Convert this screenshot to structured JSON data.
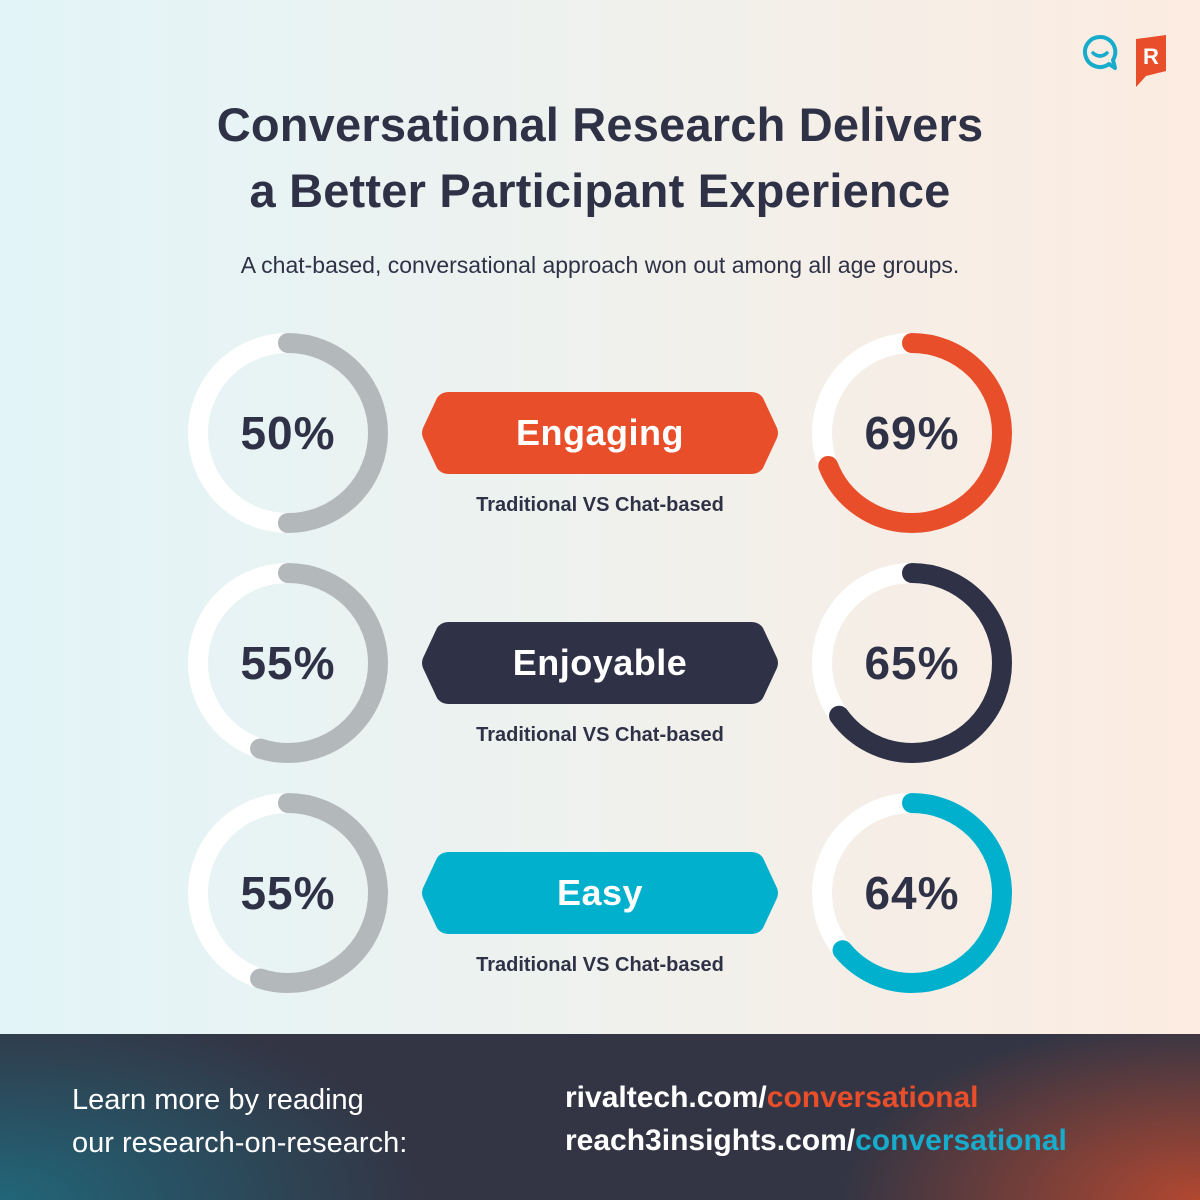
{
  "logos": {
    "reach3_icon": "chat-smile-icon",
    "rival_icon": "rival-r-flag-icon",
    "rival_letter": "R",
    "colors": {
      "reach3": "#17abcc",
      "rival": "#e94e2a"
    }
  },
  "header": {
    "title_line1": "Conversational Research Delivers",
    "title_line2": "a Better Participant Experience",
    "subtitle": "A chat-based, conversational approach won out among all age groups."
  },
  "metrics": [
    {
      "label": "Engaging",
      "traditional": "50%",
      "chat_based": "69%",
      "caption": "Traditional VS Chat-based",
      "color": "#e94e2a"
    },
    {
      "label": "Enjoyable",
      "traditional": "55%",
      "chat_based": "65%",
      "caption": "Traditional VS Chat-based",
      "color": "#2f3247"
    },
    {
      "label": "Easy",
      "traditional": "55%",
      "chat_based": "64%",
      "caption": "Traditional VS Chat-based",
      "color": "#00b0cc"
    }
  ],
  "colors": {
    "traditional_arc": "#b3b9ba",
    "track": "#ffffff",
    "text_dark": "#2f3247"
  },
  "footer": {
    "lead_line1": "Learn more by reading",
    "lead_line2": "our research-on-research:",
    "link1_base": "rivaltech.com/",
    "link1_path": "conversational",
    "link2_base": "reach3insights.com/",
    "link2_path": "conversational"
  },
  "chart_data": {
    "type": "donut",
    "title": "Conversational Research Delivers a Better Participant Experience",
    "subtitle": "A chat-based, conversational approach won out among all age groups.",
    "categories": [
      "Engaging",
      "Enjoyable",
      "Easy"
    ],
    "series": [
      {
        "name": "Traditional",
        "values": [
          50,
          55,
          55
        ],
        "color": "#b3b9ba"
      },
      {
        "name": "Chat-based",
        "values": [
          69,
          65,
          64
        ],
        "colors": [
          "#e94e2a",
          "#2f3247",
          "#00b0cc"
        ]
      }
    ],
    "unit": "%",
    "ylim": [
      0,
      100
    ],
    "legend": "Traditional VS Chat-based"
  }
}
